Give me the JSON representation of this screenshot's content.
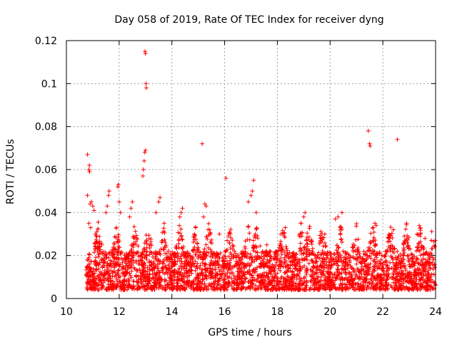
{
  "chart_data": {
    "type": "scatter",
    "title": "Day 058 of 2019, Rate Of TEC Index for receiver dyng",
    "xlabel": "GPS time / hours",
    "ylabel": "ROTI / TECUs",
    "xlim": [
      10,
      24
    ],
    "ylim": [
      0,
      0.12
    ],
    "x_ticks": [
      10,
      12,
      14,
      16,
      18,
      20,
      22,
      24
    ],
    "y_ticks": [
      0,
      0.02,
      0.04,
      0.06,
      0.08,
      0.1,
      0.12
    ],
    "x_tick_labels": [
      "10",
      "12",
      "14",
      "16",
      "18",
      "20",
      "22",
      "24"
    ],
    "y_tick_labels": [
      "0",
      "0.02",
      "0.04",
      "0.06",
      "0.08",
      "0.1",
      "0.12"
    ],
    "grid": true,
    "marker": "+",
    "color": "#ff0000",
    "x_data_range": [
      10.75,
      24.0
    ],
    "series": [
      {
        "name": "ROTI",
        "points": [
          [
            10.8,
            0.067
          ],
          [
            10.85,
            0.06
          ],
          [
            10.87,
            0.062
          ],
          [
            10.88,
            0.059
          ],
          [
            10.8,
            0.048
          ],
          [
            10.9,
            0.044
          ],
          [
            10.95,
            0.045
          ],
          [
            11.0,
            0.043
          ],
          [
            11.05,
            0.041
          ],
          [
            10.85,
            0.035
          ],
          [
            10.92,
            0.033
          ],
          [
            11.1,
            0.03
          ],
          [
            11.15,
            0.031
          ],
          [
            11.5,
            0.04
          ],
          [
            11.55,
            0.043
          ],
          [
            11.6,
            0.048
          ],
          [
            11.62,
            0.05
          ],
          [
            11.95,
            0.052
          ],
          [
            11.97,
            0.053
          ],
          [
            12.0,
            0.045
          ],
          [
            12.05,
            0.04
          ],
          [
            12.4,
            0.038
          ],
          [
            12.45,
            0.042
          ],
          [
            12.5,
            0.045
          ],
          [
            12.9,
            0.057
          ],
          [
            12.92,
            0.06
          ],
          [
            12.95,
            0.064
          ],
          [
            12.97,
            0.068
          ],
          [
            13.0,
            0.069
          ],
          [
            12.98,
            0.115
          ],
          [
            13.0,
            0.114
          ],
          [
            13.02,
            0.1
          ],
          [
            13.03,
            0.098
          ],
          [
            13.4,
            0.04
          ],
          [
            13.5,
            0.045
          ],
          [
            13.55,
            0.047
          ],
          [
            14.3,
            0.038
          ],
          [
            14.35,
            0.04
          ],
          [
            14.4,
            0.042
          ],
          [
            14.85,
            0.03
          ],
          [
            14.9,
            0.033
          ],
          [
            15.15,
            0.072
          ],
          [
            15.2,
            0.038
          ],
          [
            15.25,
            0.044
          ],
          [
            15.3,
            0.043
          ],
          [
            15.8,
            0.03
          ],
          [
            16.05,
            0.056
          ],
          [
            16.9,
            0.045
          ],
          [
            17.0,
            0.048
          ],
          [
            17.05,
            0.05
          ],
          [
            17.1,
            0.055
          ],
          [
            17.2,
            0.04
          ],
          [
            17.6,
            0.025
          ],
          [
            18.2,
            0.03
          ],
          [
            18.3,
            0.033
          ],
          [
            18.9,
            0.035
          ],
          [
            19.0,
            0.038
          ],
          [
            19.05,
            0.04
          ],
          [
            19.8,
            0.03
          ],
          [
            20.2,
            0.037
          ],
          [
            20.3,
            0.038
          ],
          [
            20.45,
            0.04
          ],
          [
            21.45,
            0.078
          ],
          [
            21.5,
            0.072
          ],
          [
            21.52,
            0.071
          ],
          [
            21.7,
            0.035
          ],
          [
            21.75,
            0.034
          ],
          [
            22.55,
            0.074
          ],
          [
            22.4,
            0.032
          ],
          [
            22.9,
            0.035
          ],
          [
            23.3,
            0.03
          ],
          [
            23.6,
            0.028
          ]
        ]
      }
    ],
    "dense_band": {
      "description_note": "",
      "x_start": 10.75,
      "x_end": 24.0,
      "y_base": 0.004,
      "y_typical_max": 0.022,
      "y_burst_max": 0.036
    }
  }
}
